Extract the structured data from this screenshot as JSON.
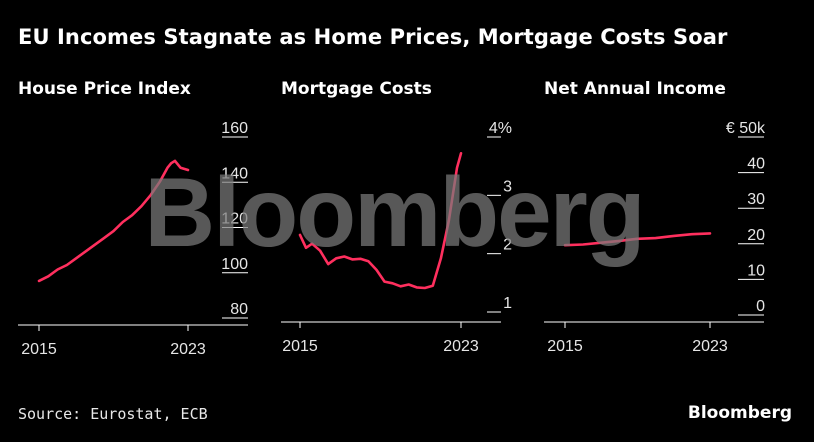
{
  "title": "EU Incomes Stagnate as Home Prices, Mortgage Costs Soar",
  "source": "Source: Eurostat, ECB",
  "brand": "Bloomberg",
  "watermark": "Bloomberg",
  "colors": {
    "background": "#000000",
    "line": "#ff2f5e",
    "axis": "#ffffff",
    "watermark": "#7a7a7a"
  },
  "chart_data": [
    {
      "type": "line",
      "title": "House Price Index",
      "x_ticks": [
        "2015",
        "2023"
      ],
      "y_ticks": [
        "80",
        "100",
        "120",
        "140",
        "160"
      ],
      "ylim": [
        80,
        160
      ],
      "xlim": [
        2015,
        2024.5
      ],
      "series": [
        {
          "points": [
            [
              2015.0,
              92
            ],
            [
              2015.5,
              94
            ],
            [
              2016.0,
              97
            ],
            [
              2016.5,
              99
            ],
            [
              2017.0,
              102
            ],
            [
              2017.5,
              105
            ],
            [
              2018.0,
              108
            ],
            [
              2018.5,
              111
            ],
            [
              2019.0,
              114
            ],
            [
              2019.5,
              118
            ],
            [
              2020.0,
              121
            ],
            [
              2020.5,
              125
            ],
            [
              2021.0,
              130
            ],
            [
              2021.5,
              136
            ],
            [
              2021.9,
              142
            ],
            [
              2022.1,
              144
            ],
            [
              2022.3,
              145
            ],
            [
              2022.6,
              142
            ],
            [
              2023.0,
              141
            ]
          ]
        }
      ]
    },
    {
      "type": "line",
      "title": "Mortgage Costs",
      "x_ticks": [
        "2015",
        "2023"
      ],
      "y_ticks": [
        "1",
        "2",
        "3",
        "4%"
      ],
      "ylim": [
        1,
        4
      ],
      "xlim": [
        2015,
        2024.5
      ],
      "series": [
        {
          "points": [
            [
              2015.0,
              2.15
            ],
            [
              2015.3,
              1.93
            ],
            [
              2015.6,
              2.0
            ],
            [
              2016.0,
              1.88
            ],
            [
              2016.4,
              1.65
            ],
            [
              2016.8,
              1.75
            ],
            [
              2017.2,
              1.78
            ],
            [
              2017.6,
              1.73
            ],
            [
              2018.0,
              1.74
            ],
            [
              2018.4,
              1.7
            ],
            [
              2018.8,
              1.55
            ],
            [
              2019.2,
              1.35
            ],
            [
              2019.6,
              1.32
            ],
            [
              2020.0,
              1.27
            ],
            [
              2020.4,
              1.3
            ],
            [
              2020.8,
              1.25
            ],
            [
              2021.2,
              1.24
            ],
            [
              2021.6,
              1.28
            ],
            [
              2022.0,
              1.75
            ],
            [
              2022.4,
              2.4
            ],
            [
              2022.8,
              3.3
            ],
            [
              2023.0,
              3.55
            ]
          ]
        }
      ]
    },
    {
      "type": "line",
      "title": "Net Annual Income",
      "x_ticks": [
        "2015",
        "2023"
      ],
      "y_ticks": [
        "0",
        "10",
        "20",
        "30",
        "40",
        "€ 50k"
      ],
      "ylim": [
        0,
        50
      ],
      "xlim": [
        2015,
        2024.5
      ],
      "series": [
        {
          "points": [
            [
              2015,
              16.8
            ],
            [
              2016,
              17.0
            ],
            [
              2017,
              17.5
            ],
            [
              2018,
              18.0
            ],
            [
              2019,
              18.6
            ],
            [
              2020,
              18.8
            ],
            [
              2021,
              19.4
            ],
            [
              2022,
              19.9
            ],
            [
              2023,
              20.1
            ]
          ]
        }
      ]
    }
  ]
}
